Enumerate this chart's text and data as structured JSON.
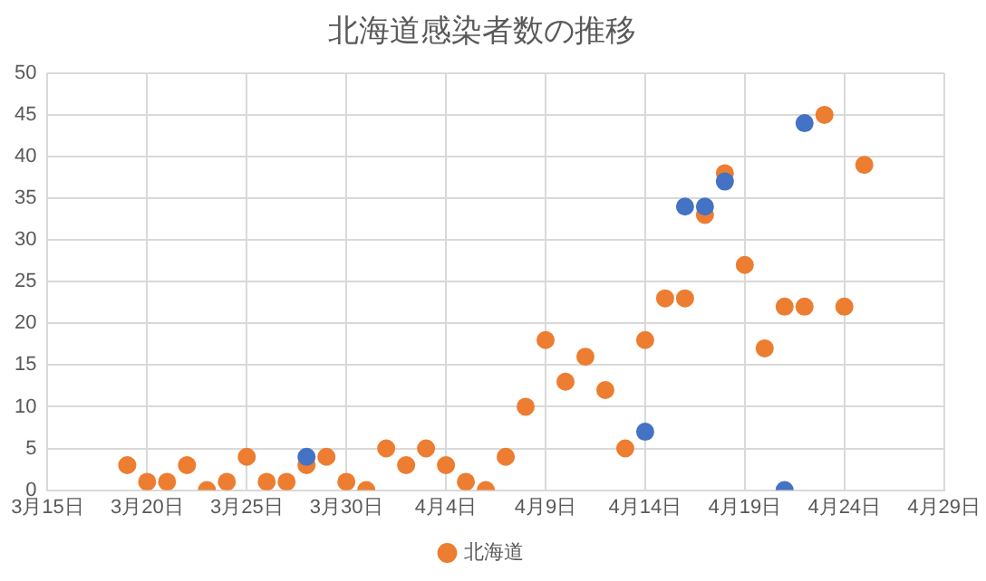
{
  "chart_data": {
    "type": "scatter",
    "title": "北海道感染者数の推移",
    "xlim": [
      "--03-15",
      "--04-29"
    ],
    "xticks": [
      {
        "value": "--03-15",
        "label": "3月15日"
      },
      {
        "value": "--03-20",
        "label": "3月20日"
      },
      {
        "value": "--03-25",
        "label": "3月25日"
      },
      {
        "value": "--03-30",
        "label": "3月30日"
      },
      {
        "value": "--04-04",
        "label": "4月4日"
      },
      {
        "value": "--04-09",
        "label": "4月9日"
      },
      {
        "value": "--04-14",
        "label": "4月14日"
      },
      {
        "value": "--04-19",
        "label": "4月19日"
      },
      {
        "value": "--04-24",
        "label": "4月24日"
      },
      {
        "value": "--04-29",
        "label": "4月29日"
      }
    ],
    "ylim": [
      0,
      50
    ],
    "yticks": [
      0,
      5,
      10,
      15,
      20,
      25,
      30,
      35,
      40,
      45,
      50
    ],
    "grid": true,
    "legend": "bottom",
    "marker": "circle",
    "series": [
      {
        "color": "#4472c4",
        "x": [
          "--03-28",
          "--04-14",
          "--04-16",
          "--04-17",
          "--04-18",
          "--04-21",
          "--04-22"
        ],
        "values": [
          4,
          7,
          34,
          34,
          37,
          0,
          44
        ]
      },
      {
        "name": "北海道",
        "color": "#ed7d31",
        "x": [
          "--03-19",
          "--03-20",
          "--03-21",
          "--03-22",
          "--03-23",
          "--03-24",
          "--03-25",
          "--03-26",
          "--03-27",
          "--03-28",
          "--03-29",
          "--03-30",
          "--03-31",
          "--04-01",
          "--04-02",
          "--04-03",
          "--04-04",
          "--04-05",
          "--04-06",
          "--04-07",
          "--04-08",
          "--04-09",
          "--04-10",
          "--04-11",
          "--04-12",
          "--04-13",
          "--04-14",
          "--04-15",
          "--04-16",
          "--04-17",
          "--04-18",
          "--04-19",
          "--04-20",
          "--04-21",
          "--04-22",
          "--04-23",
          "--04-24",
          "--04-25"
        ],
        "values": [
          3,
          1,
          1,
          3,
          0,
          1,
          4,
          1,
          1,
          3,
          4,
          1,
          0,
          5,
          3,
          5,
          3,
          1,
          0,
          4,
          10,
          18,
          13,
          16,
          12,
          5,
          18,
          23,
          23,
          33,
          38,
          27,
          17,
          22,
          22,
          45,
          22,
          39
        ]
      }
    ]
  }
}
